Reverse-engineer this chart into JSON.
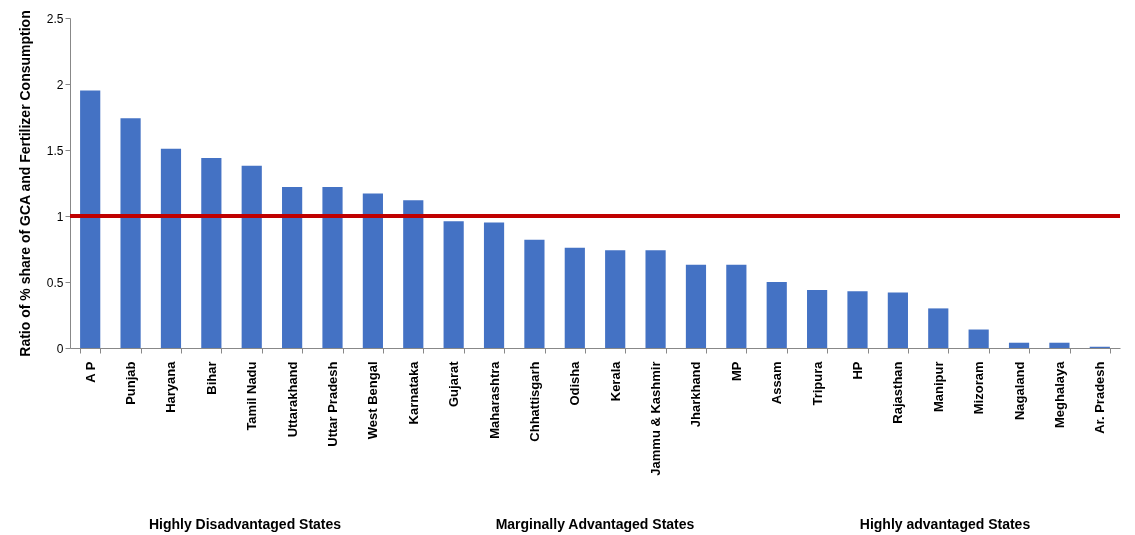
{
  "chart_data": {
    "type": "bar",
    "ylabel": "Ratio  of  % share of  GCA and Fertilizer Consumption",
    "categories": [
      "A P",
      "Punjab",
      "Haryana",
      "Bihar",
      "Tamil Nadu",
      "Uttarakhand",
      "Uttar Pradesh",
      "West Bengal",
      "Karnataka",
      "Gujarat",
      "Maharashtra",
      "Chhattisgarh",
      "Odisha",
      "Kerala",
      "Jammu & Kashmir",
      "Jharkhand",
      "MP",
      "Assam",
      "Tripura",
      "HP",
      "Rajasthan",
      "Manipur",
      "Mizoram",
      "Nagaland",
      "Meghalaya",
      "Ar. Pradesh"
    ],
    "values": [
      1.95,
      1.74,
      1.51,
      1.44,
      1.38,
      1.22,
      1.22,
      1.17,
      1.12,
      0.96,
      0.95,
      0.82,
      0.76,
      0.74,
      0.74,
      0.63,
      0.63,
      0.5,
      0.44,
      0.43,
      0.42,
      0.3,
      0.14,
      0.04,
      0.04,
      0.01
    ],
    "color": "#4472c4",
    "ylim": [
      0,
      2.5
    ],
    "yticks": [
      0,
      0.5,
      1,
      1.5,
      2,
      2.5
    ],
    "grid": false,
    "ref_lines": [
      {
        "axis": "y",
        "value": 1,
        "color": "#c00000"
      }
    ],
    "annotations": [
      "Highly Disadvantaged States",
      "Marginally Advantaged States",
      "Highly advantaged States"
    ]
  }
}
